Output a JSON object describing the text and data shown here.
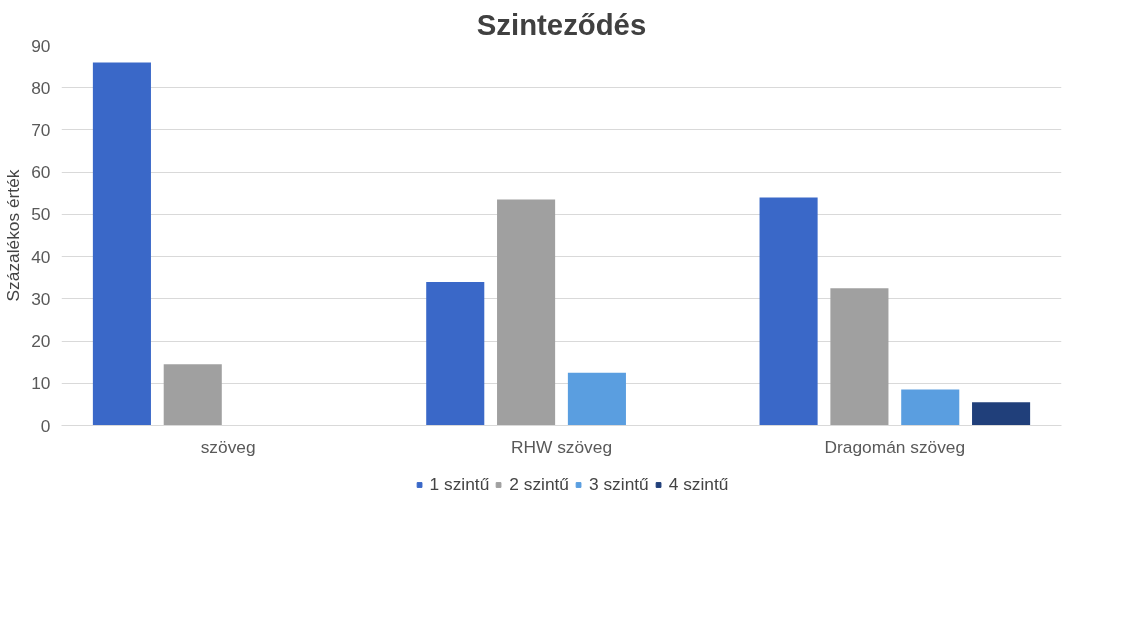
{
  "chart_data": {
    "type": "bar",
    "title": "Szinteződés",
    "ylabel": "Százalékos érték",
    "categories": [
      "szöveg",
      "RHW szöveg",
      "Dragomán szöveg"
    ],
    "series": [
      {
        "name": "1 szintű",
        "color": "#3a68c8",
        "values": [
          86,
          34,
          54
        ]
      },
      {
        "name": "2 szintű",
        "color": "#a0a0a0",
        "values": [
          14.5,
          53.5,
          32.5
        ]
      },
      {
        "name": "3 szintű",
        "color": "#5a9ee0",
        "values": [
          null,
          12.5,
          8.5
        ]
      },
      {
        "name": "4 szintű",
        "color": "#203f7a",
        "values": [
          null,
          null,
          5.5
        ]
      }
    ],
    "ylim": [
      0,
      90
    ],
    "yticks": [
      0,
      10,
      20,
      30,
      40,
      50,
      60,
      70,
      80,
      90
    ],
    "grid": "y",
    "legend": "bottom"
  }
}
